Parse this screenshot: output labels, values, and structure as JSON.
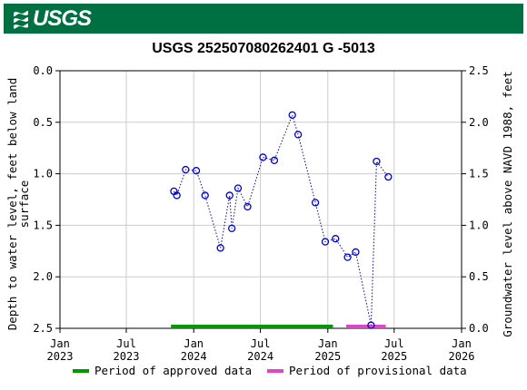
{
  "header": {
    "logo_text": "USGS",
    "brand_color": "#006f41",
    "logo_icon": "usgs-wave-icon"
  },
  "chart_data": {
    "type": "scatter",
    "title": "USGS 252507080262401 G  -5013",
    "ylabel_left_line1": "Depth to water level, feet below land",
    "ylabel_left_line2": "surface",
    "ylabel_right": "Groundwater level above NAVD 1988, feet",
    "y_left_range": [
      2.5,
      0.0
    ],
    "y_right_range": [
      0.0,
      2.5
    ],
    "y_left_ticks": [
      "0.0",
      "0.5",
      "1.0",
      "1.5",
      "2.0",
      "2.5"
    ],
    "y_right_ticks": [
      "2.5",
      "2.0",
      "1.5",
      "1.0",
      "0.5",
      "0.0"
    ],
    "x_range": [
      "2023-01-01",
      "2026-01-01"
    ],
    "x_ticks": [
      {
        "date": "2023-01-01",
        "line1": "Jan",
        "line2": "2023"
      },
      {
        "date": "2023-07-01",
        "line1": "Jul",
        "line2": "2023"
      },
      {
        "date": "2024-01-01",
        "line1": "Jan",
        "line2": "2024"
      },
      {
        "date": "2024-07-01",
        "line1": "Jul",
        "line2": "2024"
      },
      {
        "date": "2025-01-01",
        "line1": "Jan",
        "line2": "2025"
      },
      {
        "date": "2025-07-01",
        "line1": "Jul",
        "line2": "2025"
      },
      {
        "date": "2026-01-01",
        "line1": "Jan",
        "line2": "2026"
      }
    ],
    "grid": true,
    "series_color": "#0000cc",
    "points": [
      {
        "date": "2023-11-08",
        "depth": 1.17
      },
      {
        "date": "2023-11-16",
        "depth": 1.21
      },
      {
        "date": "2023-12-10",
        "depth": 0.96
      },
      {
        "date": "2024-01-08",
        "depth": 0.97
      },
      {
        "date": "2024-02-01",
        "depth": 1.21
      },
      {
        "date": "2024-03-14",
        "depth": 1.72
      },
      {
        "date": "2024-04-08",
        "depth": 1.21
      },
      {
        "date": "2024-04-14",
        "depth": 1.53
      },
      {
        "date": "2024-05-01",
        "depth": 1.14
      },
      {
        "date": "2024-05-27",
        "depth": 1.32
      },
      {
        "date": "2024-07-08",
        "depth": 0.84
      },
      {
        "date": "2024-08-08",
        "depth": 0.87
      },
      {
        "date": "2024-09-26",
        "depth": 0.43
      },
      {
        "date": "2024-10-12",
        "depth": 0.62
      },
      {
        "date": "2024-11-28",
        "depth": 1.28
      },
      {
        "date": "2024-12-25",
        "depth": 1.66
      },
      {
        "date": "2025-01-22",
        "depth": 1.63
      },
      {
        "date": "2025-02-24",
        "depth": 1.81
      },
      {
        "date": "2025-03-18",
        "depth": 1.76
      },
      {
        "date": "2025-04-29",
        "depth": 2.47
      },
      {
        "date": "2025-05-14",
        "depth": 0.88
      },
      {
        "date": "2025-06-15",
        "depth": 1.03
      }
    ],
    "periods": [
      {
        "name": "Period of approved data",
        "color": "#009900",
        "start": "2023-10-31",
        "end": "2025-01-15"
      },
      {
        "name": "Period of provisional data",
        "color": "#e044c8",
        "start": "2025-02-20",
        "end": "2025-06-08"
      }
    ]
  }
}
